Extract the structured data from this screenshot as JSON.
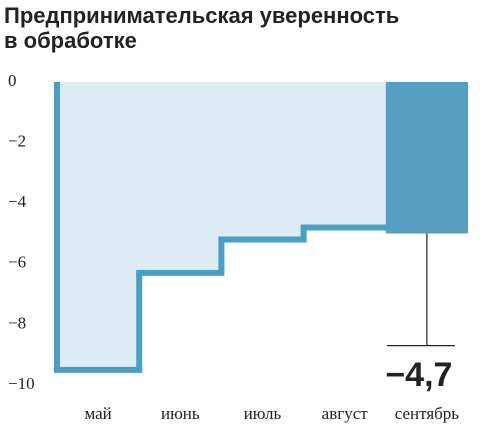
{
  "chart_data": {
    "type": "step",
    "title_lines": [
      "Предпринимательская уверенность",
      "в обработке"
    ],
    "categories": [
      "май",
      "июнь",
      "июль",
      "август",
      "сентябрь"
    ],
    "values": [
      -9.5,
      -6.3,
      -5.2,
      -4.8,
      -5.0
    ],
    "whisker_low": -8.7,
    "annotation": "−4,7",
    "color": "#4a9fc4",
    "area_color": "#deedf5",
    "bar_color": "#559fc2",
    "ylim": [
      -10,
      0
    ],
    "yticks": [
      0,
      {
        "value": -2,
        "label": "−2"
      },
      {
        "value": -4,
        "label": "−4"
      },
      {
        "value": -6,
        "label": "−6"
      },
      {
        "value": -8,
        "label": "−8"
      },
      {
        "value": -10,
        "label": "−10"
      }
    ]
  }
}
